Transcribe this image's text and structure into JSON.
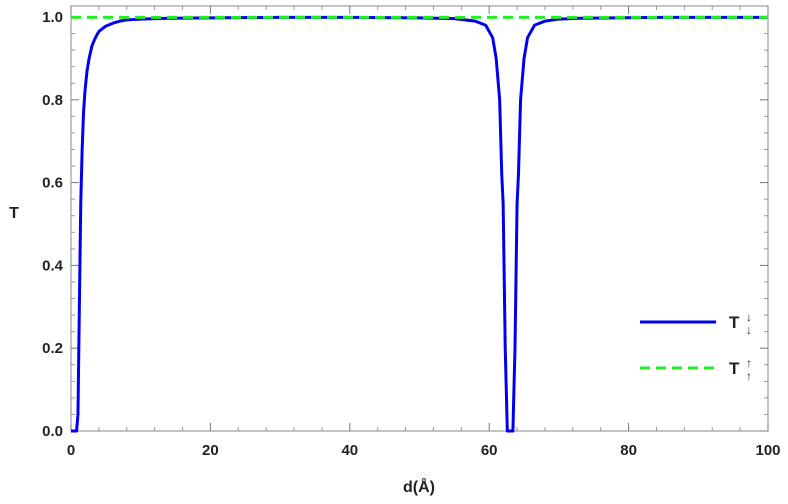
{
  "chart_data": {
    "type": "line",
    "title": "",
    "xlabel": "d(Å)",
    "ylabel": "T",
    "xlim": [
      0,
      100
    ],
    "ylim": [
      0,
      1
    ],
    "x_ticks": [
      0,
      20,
      40,
      60,
      80,
      100
    ],
    "y_ticks": [
      0.0,
      0.2,
      0.4,
      0.6,
      0.8,
      1.0
    ],
    "x_tick_labels": [
      "0",
      "20",
      "40",
      "60",
      "80",
      "100"
    ],
    "y_tick_labels": [
      "0.0",
      "0.2",
      "0.4",
      "0.6",
      "0.8",
      "1.0"
    ],
    "grid": false,
    "legend_position": "right",
    "series": [
      {
        "name": "T↓",
        "label_base": "T",
        "label_arrow": "↓",
        "color": "#0000ee",
        "style": "solid",
        "x": [
          0.0,
          0.4,
          0.8,
          1.0,
          1.2,
          1.4,
          1.6,
          1.8,
          2.0,
          2.3,
          2.6,
          3.0,
          3.5,
          4.0,
          5.0,
          6.0,
          7.0,
          8.0,
          10.0,
          14.0,
          20.0,
          30.0,
          40.0,
          50.0,
          55.0,
          58.0,
          59.5,
          60.5,
          61.0,
          61.5,
          61.8,
          62.0,
          62.3,
          62.6,
          63.0,
          63.4,
          63.7,
          64.0,
          64.2,
          64.5,
          65.0,
          65.5,
          66.5,
          68.0,
          70.0,
          73.0,
          78.0,
          85.0,
          100.0
        ],
        "y": [
          0.0,
          0.0,
          0.0,
          0.04,
          0.3,
          0.55,
          0.68,
          0.77,
          0.82,
          0.87,
          0.9,
          0.93,
          0.95,
          0.965,
          0.978,
          0.985,
          0.99,
          0.993,
          0.995,
          0.997,
          0.998,
          0.999,
          0.999,
          0.998,
          0.996,
          0.99,
          0.98,
          0.95,
          0.9,
          0.8,
          0.62,
          0.55,
          0.2,
          0.0,
          0.0,
          0.0,
          0.2,
          0.55,
          0.62,
          0.8,
          0.9,
          0.95,
          0.98,
          0.99,
          0.995,
          0.997,
          0.998,
          0.999,
          0.999
        ]
      },
      {
        "name": "T↑",
        "label_base": "T",
        "label_arrow": "↑",
        "color": "#22ee22",
        "style": "dashed",
        "x": [
          0,
          100
        ],
        "y": [
          0.999,
          0.999
        ]
      }
    ]
  }
}
